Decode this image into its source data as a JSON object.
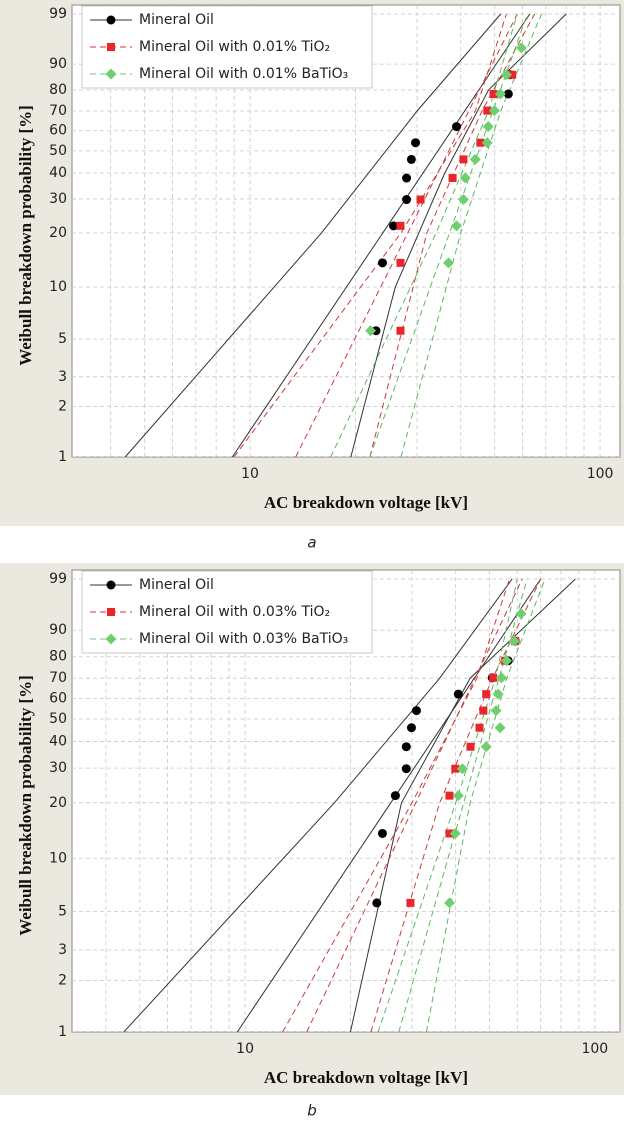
{
  "chart_data": [
    {
      "type": "scatter",
      "caption": "a",
      "xlabel": "AC breakdown voltage [kV]",
      "ylabel": "Weibull breakdown probability [%]",
      "xscale": "log",
      "yscale": "weibull",
      "grid": true,
      "xlim": [
        3.1,
        114
      ],
      "xticks": [
        10,
        100
      ],
      "xminor": [
        4,
        5,
        6,
        7,
        8,
        9,
        20,
        30,
        40,
        50,
        60,
        70,
        80,
        90
      ],
      "ylim": [
        1,
        99
      ],
      "yticks": [
        1,
        2,
        3,
        5,
        10,
        20,
        30,
        40,
        50,
        60,
        70,
        80,
        90,
        99
      ],
      "legend": "upper left",
      "series": [
        {
          "name": "Mineral Oil",
          "color": "#000000",
          "line_color": "#333333",
          "dashed": false,
          "marker": "circle",
          "x": [
            22.9,
            23.9,
            25.7,
            28.0,
            28.0,
            28.9,
            29.7,
            38.9,
            54.7,
            55.4
          ],
          "values": [
            5.6,
            13.7,
            21.8,
            29.8,
            37.9,
            46,
            54,
            62.1,
            78.2,
            86.3
          ],
          "fit": {
            "x": [
              8.9,
              63
            ],
            "values": [
              1,
              99
            ]
          },
          "bounds": [
            {
              "x": [
                4.4,
                16,
                30,
                52
              ],
              "values": [
                1,
                20,
                70,
                99
              ]
            },
            {
              "x": [
                19.4,
                26,
                36,
                48,
                80
              ],
              "values": [
                1,
                10,
                40,
                80,
                99
              ]
            }
          ]
        },
        {
          "name": "Mineral Oil with 0.01% TiO₂",
          "color": "#e8262b",
          "line_color": "#c83c3c",
          "dashed": true,
          "marker": "square",
          "x": [
            26.9,
            26.9,
            26.9,
            30.7,
            37.9,
            40.7,
            45.5,
            47.6,
            49.6,
            56.1
          ],
          "values": [
            5.6,
            13.7,
            21.8,
            29.8,
            37.9,
            46,
            54,
            70.2,
            78.2,
            86.3
          ],
          "fit": {
            "x": [
              13.5,
              58
            ],
            "values": [
              1,
              99
            ]
          },
          "bounds": [
            {
              "x": [
                9,
                27,
                44,
                54
              ],
              "values": [
                1,
                20,
                70,
                99
              ]
            },
            {
              "x": [
                22,
                32,
                46,
                65
              ],
              "values": [
                1,
                20,
                70,
                99
              ]
            }
          ]
        },
        {
          "name": "Mineral Oil with 0.01% BaTiO₃",
          "color": "#6fcf6f",
          "line_color": "#5cb85c",
          "dashed": true,
          "marker": "diamond",
          "x": [
            22.1,
            36.9,
            38.9,
            40.7,
            41.2,
            44.0,
            47.6,
            47.9,
            49.9,
            51.9,
            54.0,
            59.6
          ],
          "values": [
            5.6,
            13.7,
            21.8,
            29.8,
            37.9,
            46,
            54,
            62.1,
            70.2,
            78.2,
            86.3,
            94.4
          ],
          "fit": {
            "x": [
              22,
              62
            ],
            "values": [
              1,
              99
            ]
          },
          "bounds": [
            {
              "x": [
                17,
                34,
                48,
                58
              ],
              "values": [
                1,
                20,
                70,
                99
              ]
            },
            {
              "x": [
                27,
                40,
                52,
                68
              ],
              "values": [
                1,
                20,
                70,
                99
              ]
            }
          ]
        }
      ]
    },
    {
      "type": "scatter",
      "caption": "b",
      "xlabel": "AC breakdown voltage [kV]",
      "ylabel": "Weibull breakdown probability [%]",
      "xscale": "log",
      "yscale": "weibull",
      "grid": true,
      "xlim": [
        3.2,
        118
      ],
      "xticks": [
        10,
        100
      ],
      "xminor": [
        4,
        5,
        6,
        7,
        8,
        9,
        20,
        30,
        40,
        50,
        60,
        70,
        80,
        90
      ],
      "ylim": [
        1,
        99
      ],
      "yticks": [
        1,
        2,
        3,
        5,
        10,
        20,
        30,
        40,
        50,
        60,
        70,
        80,
        90,
        99
      ],
      "legend": "upper left",
      "series": [
        {
          "name": "Mineral Oil",
          "color": "#000000",
          "line_color": "#333333",
          "dashed": false,
          "marker": "circle",
          "x": [
            23.8,
            24.7,
            26.9,
            28.9,
            28.9,
            29.9,
            30.9,
            40.7,
            50.9,
            56.5,
            59.2
          ],
          "values": [
            5.6,
            13.7,
            21.8,
            29.8,
            37.9,
            46,
            54,
            62.1,
            70.2,
            78.2,
            86.3
          ],
          "fit": {
            "x": [
              9.5,
              70
            ],
            "values": [
              1,
              99
            ]
          },
          "bounds": [
            {
              "x": [
                4.5,
                18,
                36,
                58
              ],
              "values": [
                1,
                20,
                70,
                99
              ]
            },
            {
              "x": [
                20,
                28,
                44,
                88
              ],
              "values": [
                1,
                20,
                70,
                99
              ]
            }
          ]
        },
        {
          "name": "Mineral Oil with 0.03% TiO₂",
          "color": "#e8262b",
          "line_color": "#c83c3c",
          "dashed": true,
          "marker": "square",
          "x": [
            29.7,
            38.4,
            38.4,
            39.9,
            44.1,
            46.8,
            48.0,
            48.9,
            51.2,
            55.4,
            59.2
          ],
          "values": [
            5.6,
            13.7,
            21.8,
            29.8,
            37.9,
            46,
            54,
            62.1,
            70.2,
            78.2,
            86.3
          ],
          "fit": {
            "x": [
              15,
              62
            ],
            "values": [
              1,
              99
            ]
          },
          "bounds": [
            {
              "x": [
                12.8,
                30,
                46,
                57
              ],
              "values": [
                1,
                20,
                70,
                99
              ]
            },
            {
              "x": [
                22.9,
                36,
                51,
                70
              ],
              "values": [
                1,
                20,
                70,
                99
              ]
            }
          ]
        },
        {
          "name": "Mineral Oil with 0.03% BaTiO₃",
          "color": "#6fcf6f",
          "line_color": "#5cb85c",
          "dashed": true,
          "marker": "diamond",
          "x": [
            38.4,
            39.9,
            40.7,
            41.8,
            48.9,
            53.6,
            52.2,
            52.9,
            54.1,
            55.9,
            58.8,
            61.5
          ],
          "values": [
            5.6,
            13.7,
            21.8,
            29.8,
            37.9,
            46,
            54,
            62.1,
            70.2,
            78.2,
            86.3,
            94.4
          ],
          "fit": {
            "x": [
              27.5,
              64
            ],
            "values": [
              1,
              99
            ]
          },
          "bounds": [
            {
              "x": [
                24,
                40,
                52,
                60
              ],
              "values": [
                1,
                20,
                70,
                99
              ]
            },
            {
              "x": [
                33,
                44,
                56,
                72
              ],
              "values": [
                1,
                20,
                70,
                99
              ]
            }
          ]
        }
      ]
    }
  ]
}
